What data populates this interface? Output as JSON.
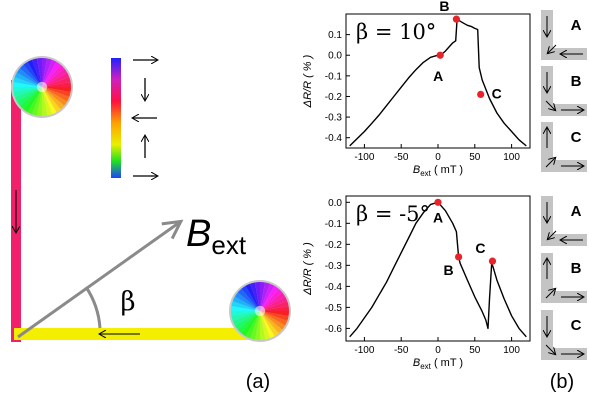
{
  "figure": {
    "panel_a_label": "(a)",
    "panel_b_label": "(b)",
    "field_label_main": "B",
    "field_label_sub": "ext",
    "angle_label": "β",
    "colorbar_arrows": [
      "right",
      "down",
      "left",
      "up",
      "right"
    ]
  },
  "insets": {
    "top": [
      {
        "label": "A",
        "vertical_arrow": "down",
        "horizontal_arrow": "left",
        "corner": "down-left"
      },
      {
        "label": "B",
        "vertical_arrow": "down",
        "horizontal_arrow": "right",
        "corner": "down-right"
      },
      {
        "label": "C",
        "vertical_arrow": "up",
        "horizontal_arrow": "right",
        "corner": "up-right"
      }
    ],
    "bottom": [
      {
        "label": "A",
        "vertical_arrow": "down",
        "horizontal_arrow": "left",
        "corner": "down-left"
      },
      {
        "label": "B",
        "vertical_arrow": "up",
        "horizontal_arrow": "right",
        "corner": "up-right"
      },
      {
        "label": "C",
        "vertical_arrow": "down",
        "horizontal_arrow": "right",
        "corner": "down-right"
      }
    ]
  },
  "chart_data": [
    {
      "type": "line",
      "title": "β = 10°",
      "xlabel_main": "B",
      "xlabel_sub": "ext",
      "xlabel_unit": "( mT )",
      "ylabel": "ΔR/R ( % )",
      "xlim": [
        -125,
        125
      ],
      "ylim": [
        -0.45,
        0.2
      ],
      "xticks": [
        -100,
        -50,
        0,
        50,
        100
      ],
      "yticks": [
        0.1,
        0.0,
        -0.1,
        -0.2,
        -0.3,
        -0.4
      ],
      "ytick_labels": [
        "0.1",
        "0.0",
        "-0.1",
        "-0.2",
        "-0.3",
        "-0.4"
      ],
      "grid": false,
      "x": [
        -120,
        -110,
        -100,
        -90,
        -80,
        -70,
        -60,
        -50,
        -40,
        -30,
        -20,
        -10,
        0,
        5,
        10,
        15,
        20,
        24,
        26,
        30,
        35,
        40,
        45,
        50,
        54,
        56,
        60,
        70,
        80,
        90,
        100,
        110,
        120
      ],
      "y": [
        -0.44,
        -0.405,
        -0.37,
        -0.33,
        -0.29,
        -0.245,
        -0.2,
        -0.155,
        -0.11,
        -0.07,
        -0.035,
        -0.01,
        0.0,
        0.005,
        0.02,
        0.04,
        0.06,
        0.07,
        0.175,
        0.165,
        0.155,
        0.145,
        0.14,
        0.13,
        0.125,
        -0.06,
        -0.12,
        -0.21,
        -0.28,
        -0.33,
        -0.37,
        -0.41,
        -0.44
      ],
      "points": [
        {
          "label": "A",
          "x": 3,
          "y": 0.0
        },
        {
          "label": "B",
          "x": 25,
          "y": 0.175
        },
        {
          "label": "C",
          "x": 58,
          "y": -0.19
        }
      ]
    },
    {
      "type": "line",
      "title": "β = -5°",
      "xlabel_main": "B",
      "xlabel_sub": "ext",
      "xlabel_unit": "( mT )",
      "ylabel": "ΔR/R ( % )",
      "xlim": [
        -125,
        125
      ],
      "ylim": [
        -0.66,
        0.03
      ],
      "xticks": [
        -100,
        -50,
        0,
        50,
        100
      ],
      "yticks": [
        0.0,
        -0.1,
        -0.2,
        -0.3,
        -0.4,
        -0.5,
        -0.6
      ],
      "ytick_labels": [
        "0.0",
        "-0.1",
        "-0.2",
        "-0.3",
        "-0.4",
        "-0.5",
        "-0.6"
      ],
      "grid": false,
      "x": [
        -120,
        -110,
        -100,
        -90,
        -80,
        -70,
        -60,
        -50,
        -40,
        -30,
        -20,
        -10,
        0,
        10,
        20,
        25,
        28,
        30,
        40,
        50,
        60,
        65,
        68,
        70,
        73,
        75,
        80,
        90,
        100,
        110,
        120
      ],
      "y": [
        -0.64,
        -0.6,
        -0.55,
        -0.5,
        -0.44,
        -0.38,
        -0.31,
        -0.24,
        -0.17,
        -0.1,
        -0.05,
        -0.01,
        0.0,
        -0.04,
        -0.1,
        -0.14,
        -0.26,
        -0.29,
        -0.37,
        -0.45,
        -0.52,
        -0.56,
        -0.6,
        -0.46,
        -0.29,
        -0.31,
        -0.37,
        -0.46,
        -0.54,
        -0.6,
        -0.64
      ],
      "points": [
        {
          "label": "A",
          "x": 0,
          "y": 0.0
        },
        {
          "label": "B",
          "x": 28,
          "y": -0.26
        },
        {
          "label": "C",
          "x": 74,
          "y": -0.28
        }
      ]
    }
  ]
}
